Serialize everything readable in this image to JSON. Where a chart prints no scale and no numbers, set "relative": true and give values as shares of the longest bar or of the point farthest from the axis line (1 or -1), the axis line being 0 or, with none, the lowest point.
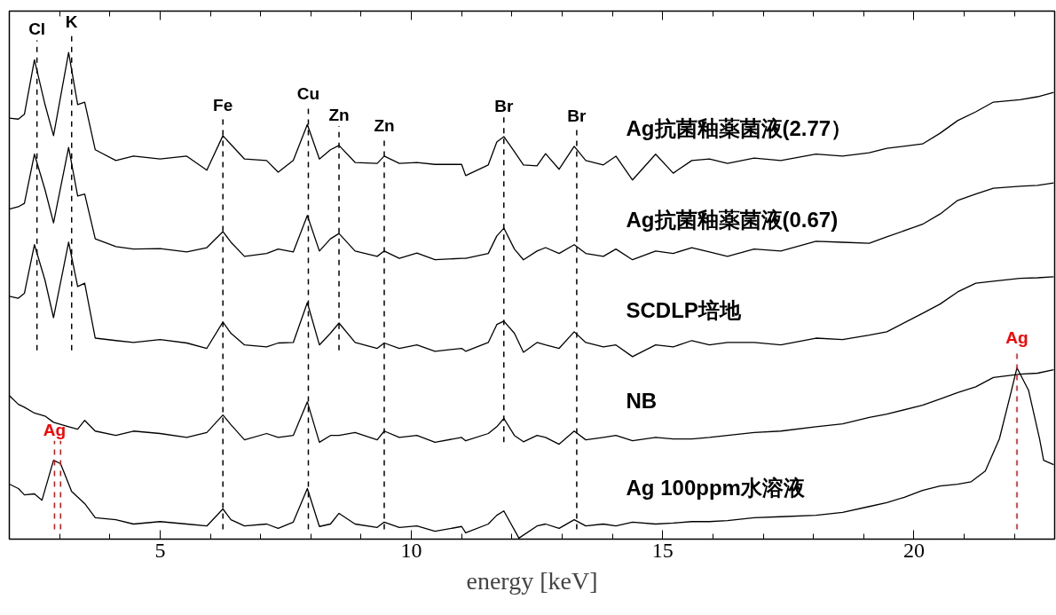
{
  "chart_data": {
    "type": "line",
    "relative": true,
    "xlabel": "energy [keV]",
    "xlim": [
      2.0,
      22.8
    ],
    "xticks": [
      {
        "value": 3,
        "label": null
      },
      {
        "value": 4,
        "label": null
      },
      5,
      {
        "value": 6,
        "label": null
      },
      {
        "value": 7,
        "label": null
      },
      {
        "value": 8,
        "label": null
      },
      {
        "value": 9,
        "label": null
      },
      10,
      {
        "value": 11,
        "label": null
      },
      {
        "value": 12,
        "label": null
      },
      {
        "value": 13,
        "label": null
      },
      {
        "value": 14,
        "label": null
      },
      15,
      {
        "value": 16,
        "label": null
      },
      {
        "value": 17,
        "label": null
      },
      {
        "value": 18,
        "label": null
      },
      {
        "value": 19,
        "label": null
      },
      20,
      {
        "value": 21,
        "label": null
      },
      {
        "value": 22,
        "label": null
      }
    ],
    "line_style": "solid",
    "x": [
      2.0,
      2.18,
      2.3,
      2.5,
      2.71,
      2.88,
      3.18,
      3.36,
      3.5,
      3.71,
      4.12,
      4.47,
      5.0,
      5.53,
      5.93,
      6.25,
      6.41,
      6.68,
      7.12,
      7.35,
      7.65,
      7.93,
      8.17,
      8.39,
      8.56,
      8.88,
      9.32,
      9.46,
      9.76,
      10.11,
      10.47,
      11.0,
      11.08,
      11.53,
      11.7,
      11.84,
      12.05,
      12.23,
      12.5,
      12.67,
      12.94,
      13.24,
      13.47,
      13.82,
      14.07,
      14.4,
      14.86,
      15.21,
      15.58,
      15.93,
      16.29,
      16.82,
      17.35,
      18.05,
      18.58,
      19.11,
      19.46,
      20.17,
      20.52,
      20.87,
      21.23,
      21.58,
      22.11,
      22.46,
      22.78
    ],
    "series": [
      {
        "name": "Ag抗菌釉薬菌液(2.77）",
        "color": "#000000",
        "values": [
          0.865,
          0.863,
          0.873,
          0.985,
          0.893,
          0.829,
          1.0,
          0.893,
          0.898,
          0.8,
          0.778,
          0.787,
          0.781,
          0.787,
          0.758,
          0.829,
          0.811,
          0.781,
          0.778,
          0.754,
          0.778,
          0.852,
          0.781,
          0.8,
          0.809,
          0.774,
          0.772,
          0.787,
          0.772,
          0.774,
          0.77,
          0.77,
          0.747,
          0.769,
          0.816,
          0.827,
          0.796,
          0.769,
          0.767,
          0.792,
          0.76,
          0.807,
          0.778,
          0.769,
          0.787,
          0.738,
          0.791,
          0.752,
          0.778,
          0.781,
          0.772,
          0.783,
          0.778,
          0.791,
          0.787,
          0.794,
          0.803,
          0.812,
          0.834,
          0.86,
          0.878,
          0.898,
          0.903,
          0.909,
          0.918
        ]
      },
      {
        "name": "Ag抗菌釉薬菌液(0.67)",
        "color": "#000000",
        "values": [
          0.678,
          0.683,
          0.69,
          0.791,
          0.718,
          0.65,
          0.805,
          0.705,
          0.709,
          0.617,
          0.601,
          0.596,
          0.597,
          0.59,
          0.599,
          0.632,
          0.61,
          0.581,
          0.587,
          0.596,
          0.59,
          0.665,
          0.592,
          0.617,
          0.628,
          0.592,
          0.581,
          0.592,
          0.577,
          0.588,
          0.574,
          0.577,
          0.577,
          0.587,
          0.623,
          0.639,
          0.596,
          0.574,
          0.592,
          0.599,
          0.587,
          0.605,
          0.587,
          0.581,
          0.596,
          0.574,
          0.592,
          0.587,
          0.599,
          0.59,
          0.581,
          0.596,
          0.592,
          0.612,
          0.61,
          0.608,
          0.621,
          0.647,
          0.668,
          0.696,
          0.709,
          0.721,
          0.725,
          0.727,
          0.732
        ]
      },
      {
        "name": "SCDLP培地",
        "color": "#000000",
        "values": [
          0.499,
          0.495,
          0.505,
          0.605,
          0.532,
          0.455,
          0.61,
          0.519,
          0.526,
          0.413,
          0.408,
          0.404,
          0.41,
          0.403,
          0.392,
          0.446,
          0.423,
          0.399,
          0.395,
          0.403,
          0.404,
          0.486,
          0.399,
          0.423,
          0.444,
          0.404,
          0.392,
          0.403,
          0.392,
          0.399,
          0.386,
          0.392,
          0.386,
          0.404,
          0.441,
          0.448,
          0.423,
          0.384,
          0.404,
          0.399,
          0.392,
          0.426,
          0.404,
          0.395,
          0.399,
          0.375,
          0.399,
          0.395,
          0.408,
          0.399,
          0.404,
          0.404,
          0.399,
          0.413,
          0.41,
          0.419,
          0.426,
          0.464,
          0.483,
          0.508,
          0.526,
          0.53,
          0.536,
          0.537,
          0.539
        ]
      },
      {
        "name": "NB",
        "color": "#000000",
        "values": [
          0.295,
          0.277,
          0.271,
          0.259,
          0.253,
          0.24,
          0.231,
          0.226,
          0.244,
          0.222,
          0.213,
          0.222,
          0.217,
          0.209,
          0.219,
          0.255,
          0.235,
          0.204,
          0.217,
          0.209,
          0.213,
          0.282,
          0.199,
          0.213,
          0.213,
          0.219,
          0.204,
          0.222,
          0.209,
          0.213,
          0.199,
          0.209,
          0.202,
          0.217,
          0.231,
          0.248,
          0.213,
          0.2,
          0.213,
          0.209,
          0.195,
          0.222,
          0.204,
          0.209,
          0.213,
          0.202,
          0.209,
          0.206,
          0.206,
          0.209,
          0.213,
          0.219,
          0.222,
          0.231,
          0.237,
          0.25,
          0.257,
          0.275,
          0.288,
          0.301,
          0.313,
          0.332,
          0.339,
          0.341,
          0.348
        ]
      },
      {
        "name": "Ag 100ppm水溶液",
        "color": "#000000",
        "x": [
          2.0,
          2.18,
          2.3,
          2.5,
          2.65,
          2.88,
          3.02,
          3.24,
          3.5,
          3.71,
          4.12,
          4.47,
          5.0,
          5.53,
          5.93,
          6.25,
          6.41,
          6.68,
          7.12,
          7.35,
          7.65,
          7.93,
          8.17,
          8.39,
          8.56,
          8.88,
          9.32,
          9.46,
          9.76,
          10.11,
          10.47,
          11.0,
          11.08,
          11.53,
          11.7,
          11.84,
          12.14,
          12.5,
          12.67,
          12.94,
          13.24,
          13.47,
          13.82,
          14.07,
          14.4,
          14.86,
          15.21,
          15.58,
          15.93,
          16.29,
          16.82,
          17.35,
          18.05,
          18.58,
          19.11,
          19.46,
          19.81,
          20.17,
          20.52,
          20.87,
          21.14,
          21.42,
          21.7,
          21.93,
          22.05,
          22.28,
          22.5,
          22.58,
          22.78
        ],
        "values": [
          0.113,
          0.104,
          0.091,
          0.093,
          0.08,
          0.162,
          0.155,
          0.098,
          0.073,
          0.044,
          0.04,
          0.031,
          0.036,
          0.031,
          0.027,
          0.062,
          0.04,
          0.027,
          0.031,
          0.022,
          0.035,
          0.104,
          0.026,
          0.031,
          0.053,
          0.031,
          0.024,
          0.035,
          0.024,
          0.027,
          0.016,
          0.026,
          0.013,
          0.031,
          0.049,
          0.058,
          0.002,
          0.027,
          0.031,
          0.022,
          0.04,
          0.027,
          0.031,
          0.027,
          0.035,
          0.031,
          0.033,
          0.036,
          0.036,
          0.038,
          0.044,
          0.046,
          0.049,
          0.055,
          0.067,
          0.075,
          0.086,
          0.1,
          0.109,
          0.113,
          0.118,
          0.14,
          0.206,
          0.301,
          0.352,
          0.306,
          0.206,
          0.162,
          0.153
        ]
      }
    ],
    "ref_lines": [
      {
        "axis": "x",
        "value": 2.55,
        "label": "Cl",
        "color": "#000000",
        "line_style": "dashed"
      },
      {
        "axis": "x",
        "value": 3.24,
        "label": "K",
        "color": "#000000",
        "line_style": "dashed"
      },
      {
        "axis": "x",
        "value": 6.25,
        "label": "Fe",
        "color": "#000000",
        "line_style": "dashed"
      },
      {
        "axis": "x",
        "value": 7.95,
        "label": "Cu",
        "color": "#000000",
        "line_style": "dashed"
      },
      {
        "axis": "x",
        "value": 8.56,
        "label": "Zn",
        "color": "#000000",
        "line_style": "dashed"
      },
      {
        "axis": "x",
        "value": 9.46,
        "label": "Zn",
        "color": "#000000",
        "line_style": "dashed"
      },
      {
        "axis": "x",
        "value": 11.84,
        "label": "Br",
        "color": "#000000",
        "line_style": "dashed"
      },
      {
        "axis": "x",
        "value": 13.29,
        "label": "Br",
        "color": "#000000",
        "line_style": "dashed"
      },
      {
        "axis": "x",
        "value": 2.9,
        "label": "Ag",
        "color": "#ff0000",
        "line_style": "dashed"
      },
      {
        "axis": "x",
        "value": 3.02,
        "color": "#ff0000",
        "line_style": "dashed"
      },
      {
        "axis": "x",
        "value": 22.05,
        "label": "Ag",
        "color": "#ff0000",
        "line_style": "dashed"
      }
    ]
  }
}
